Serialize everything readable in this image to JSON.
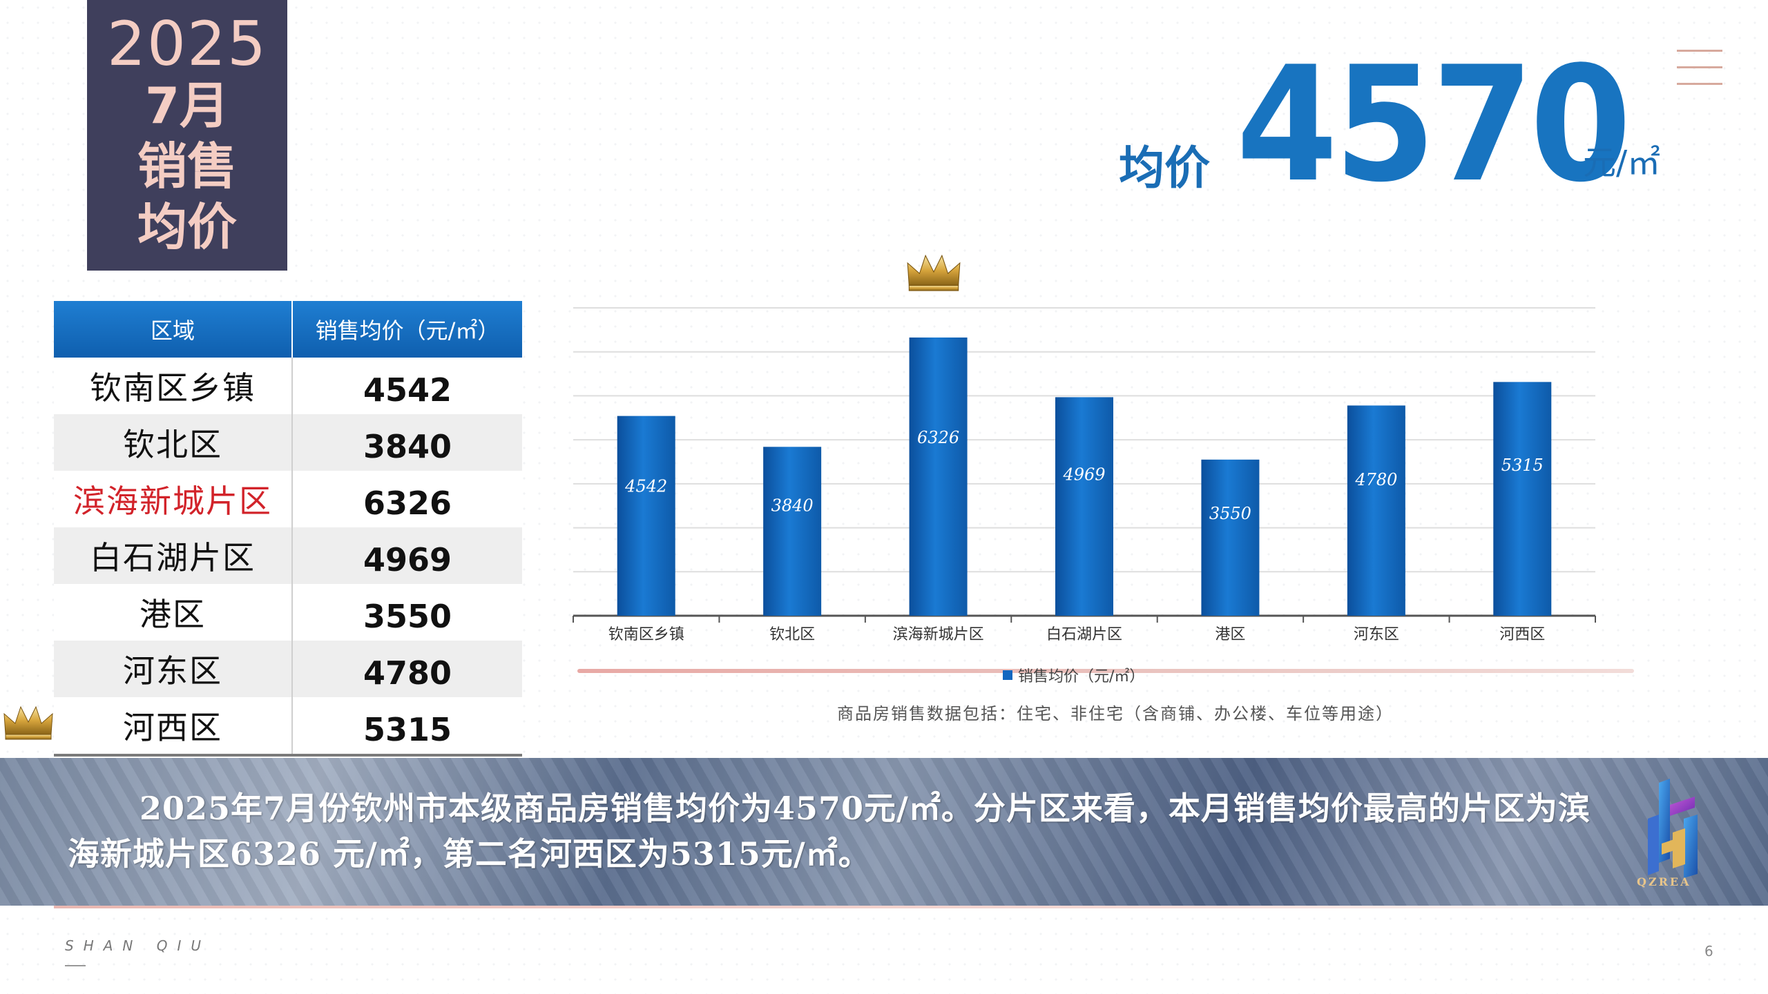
{
  "title": {
    "year": "2025",
    "line1": "7月",
    "line2": "销售",
    "line3": "均价"
  },
  "headline": {
    "label": "均价",
    "value": "4570",
    "unit": "元/㎡"
  },
  "table": {
    "headers": [
      "区域",
      "销售均价（元/㎡）"
    ],
    "rows": [
      {
        "area": "钦南区乡镇",
        "price": "4542"
      },
      {
        "area": "钦北区",
        "price": "3840"
      },
      {
        "area": "滨海新城片区",
        "price": "6326"
      },
      {
        "area": "白石湖片区",
        "price": "4969"
      },
      {
        "area": "港区",
        "price": "3550"
      },
      {
        "area": "河东区",
        "price": "4780"
      },
      {
        "area": "河西区",
        "price": "5315"
      }
    ],
    "highlight_color": "#d2232a"
  },
  "chart_data": {
    "type": "bar",
    "categories": [
      "钦南区乡镇",
      "钦北区",
      "滨海新城片区",
      "白石湖片区",
      "港区",
      "河东区",
      "河西区"
    ],
    "series": [
      {
        "name": "销售均价（元/㎡）",
        "values": [
          4542,
          3840,
          6326,
          4969,
          3550,
          4780,
          5315
        ]
      }
    ],
    "ylim": [
      0,
      7000
    ],
    "grid": true,
    "legend_position": "bottom",
    "bar_color": "#1267c0",
    "note": "商品房销售数据包括：住宅、非住宅（含商铺、办公楼、车位等用途）"
  },
  "banner": {
    "text": "2025年7月份钦州市本级商品房销售均价为4570元/㎡。分片区来看，本月销售均价最高的片区为滨海新城片区6326 元/㎡，第二名河西区为5315元/㎡。"
  },
  "logo": {
    "text": "QZREA"
  },
  "footer": {
    "signature": "SHAN QIU",
    "page_number": "6"
  },
  "colors": {
    "accent": "#1874c0",
    "title_bg": "#3f3f5c",
    "title_text": "#f4cdc3"
  }
}
